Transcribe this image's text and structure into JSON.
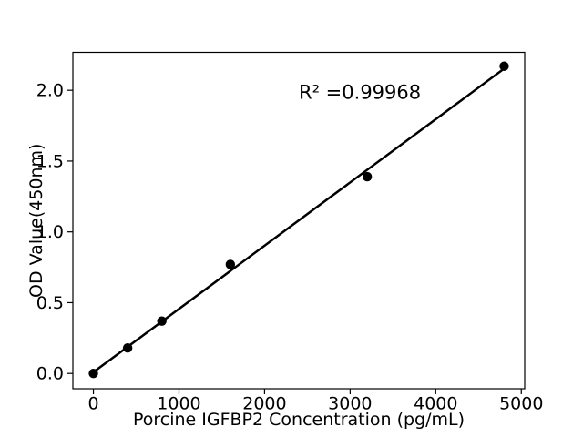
{
  "figure": {
    "background": "#ffffff"
  },
  "chart_data": {
    "type": "scatter",
    "title": "",
    "xlabel": "Porcine IGFBP2 Concentration (pg/mL)",
    "ylabel": "OD Value(450nm)",
    "annotation": {
      "text": "R² =0.99968",
      "x": 2400,
      "y": 1.94
    },
    "x": [
      0,
      400,
      800,
      1600,
      3200,
      4800
    ],
    "y": [
      0.0,
      0.18,
      0.37,
      0.77,
      1.39,
      2.17
    ],
    "fit_line": {
      "type": "linear-regression",
      "x_range": [
        0,
        4800
      ]
    },
    "xlim": [
      -240,
      5040
    ],
    "ylim": [
      -0.108,
      2.268
    ],
    "x_ticks": [
      "0",
      "1000",
      "2000",
      "3000",
      "4000",
      "5000"
    ],
    "x_tick_values": [
      0,
      1000,
      2000,
      3000,
      4000,
      5000
    ],
    "y_ticks": [
      "0.0",
      "0.5",
      "1.0",
      "1.5",
      "2.0"
    ],
    "y_tick_values": [
      0.0,
      0.5,
      1.0,
      1.5,
      2.0
    ],
    "grid": false,
    "legend": null,
    "colors": {
      "marker": "#000000",
      "line": "#000000",
      "text": "#000000",
      "spine": "#000000",
      "background": "#ffffff"
    }
  }
}
